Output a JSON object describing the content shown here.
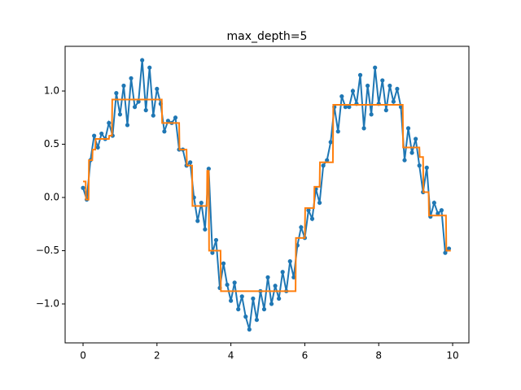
{
  "chart_data": {
    "type": "line",
    "title": "max_depth=5",
    "xlim": [
      -0.485,
      10.44
    ],
    "ylim": [
      -1.366,
      1.42
    ],
    "xticks": [
      0,
      2,
      4,
      6,
      8,
      10
    ],
    "yticks": [
      {
        "value": -1,
        "label": "−1.0"
      },
      {
        "value": -0.5,
        "label": "−0.5"
      },
      {
        "value": 0,
        "label": "0.0"
      },
      0.5,
      {
        "value": 1,
        "label": "1.0"
      }
    ],
    "series": [
      {
        "color": "#1f77b4",
        "markers": true,
        "x": [
          0.0,
          0.1,
          0.2,
          0.3,
          0.4,
          0.5,
          0.6,
          0.7,
          0.8,
          0.9,
          1.0,
          1.1,
          1.2,
          1.3,
          1.4,
          1.5,
          1.6,
          1.7,
          1.8,
          1.9,
          2.0,
          2.1,
          2.2,
          2.3,
          2.4,
          2.5,
          2.6,
          2.7,
          2.8,
          2.9,
          3.0,
          3.1,
          3.2,
          3.3,
          3.4,
          3.5,
          3.6,
          3.7,
          3.8,
          3.9,
          4.0,
          4.1,
          4.2,
          4.3,
          4.4,
          4.5,
          4.6,
          4.7,
          4.8,
          4.9,
          5.0,
          5.1,
          5.2,
          5.3,
          5.4,
          5.5,
          5.6,
          5.7,
          5.8,
          5.9,
          6.0,
          6.1,
          6.2,
          6.3,
          6.4,
          6.5,
          6.6,
          6.7,
          6.8,
          6.9,
          7.0,
          7.1,
          7.2,
          7.3,
          7.4,
          7.5,
          7.6,
          7.7,
          7.8,
          7.9,
          8.0,
          8.1,
          8.2,
          8.3,
          8.4,
          8.5,
          8.6,
          8.7,
          8.8,
          8.9,
          9.0,
          9.1,
          9.2,
          9.3,
          9.4,
          9.5,
          9.6,
          9.7,
          9.8,
          9.9
        ],
        "values": [
          0.09,
          -0.02,
          0.35,
          0.58,
          0.47,
          0.6,
          0.55,
          0.7,
          0.58,
          0.98,
          0.78,
          1.05,
          0.68,
          1.12,
          0.85,
          0.9,
          1.29,
          0.82,
          1.22,
          0.77,
          1.02,
          0.88,
          0.62,
          0.72,
          0.7,
          0.75,
          0.45,
          0.45,
          0.3,
          0.33,
          0.0,
          -0.22,
          -0.05,
          -0.3,
          0.27,
          -0.52,
          -0.4,
          -0.85,
          -0.62,
          -0.82,
          -0.97,
          -0.8,
          -1.05,
          -0.93,
          -1.12,
          -1.24,
          -0.95,
          -1.15,
          -0.88,
          -1.05,
          -0.75,
          -1.0,
          -0.83,
          -0.95,
          -0.7,
          -0.88,
          -0.6,
          -0.75,
          -0.45,
          -0.28,
          -0.38,
          -0.12,
          -0.2,
          0.08,
          -0.05,
          0.3,
          0.35,
          0.52,
          0.85,
          0.62,
          0.95,
          0.85,
          0.85,
          1.0,
          0.88,
          1.15,
          0.65,
          1.05,
          0.78,
          1.22,
          0.88,
          1.1,
          0.82,
          1.05,
          0.9,
          1.02,
          0.85,
          0.35,
          0.65,
          0.42,
          0.55,
          0.3,
          0.05,
          0.28,
          -0.18,
          -0.05,
          -0.15,
          -0.12,
          -0.52,
          -0.48
        ]
      },
      {
        "color": "#ff7f0e",
        "markers": false,
        "x": [
          0.0,
          0.07,
          0.08,
          0.15,
          0.16,
          0.25,
          0.26,
          0.33,
          0.34,
          0.7,
          0.71,
          0.78,
          0.79,
          2.13,
          2.14,
          2.6,
          2.61,
          2.8,
          2.81,
          2.95,
          2.96,
          3.35,
          3.36,
          3.4,
          3.41,
          3.72,
          3.73,
          5.75,
          5.76,
          6.0,
          6.01,
          6.25,
          6.26,
          6.4,
          6.41,
          6.76,
          6.77,
          8.65,
          8.66,
          9.1,
          9.11,
          9.2,
          9.21,
          9.35,
          9.36,
          9.82,
          9.83,
          9.95
        ],
        "values": [
          0.15,
          0.15,
          -0.02,
          -0.02,
          0.35,
          0.35,
          0.45,
          0.45,
          0.55,
          0.55,
          0.58,
          0.58,
          0.92,
          0.92,
          0.7,
          0.7,
          0.45,
          0.45,
          0.3,
          0.3,
          -0.08,
          -0.08,
          0.25,
          0.25,
          -0.5,
          -0.5,
          -0.88,
          -0.88,
          -0.38,
          -0.38,
          -0.1,
          -0.1,
          0.1,
          0.1,
          0.33,
          0.33,
          0.87,
          0.87,
          0.47,
          0.47,
          0.38,
          0.38,
          0.05,
          0.05,
          -0.17,
          -0.17,
          -0.5,
          -0.5
        ]
      }
    ]
  }
}
